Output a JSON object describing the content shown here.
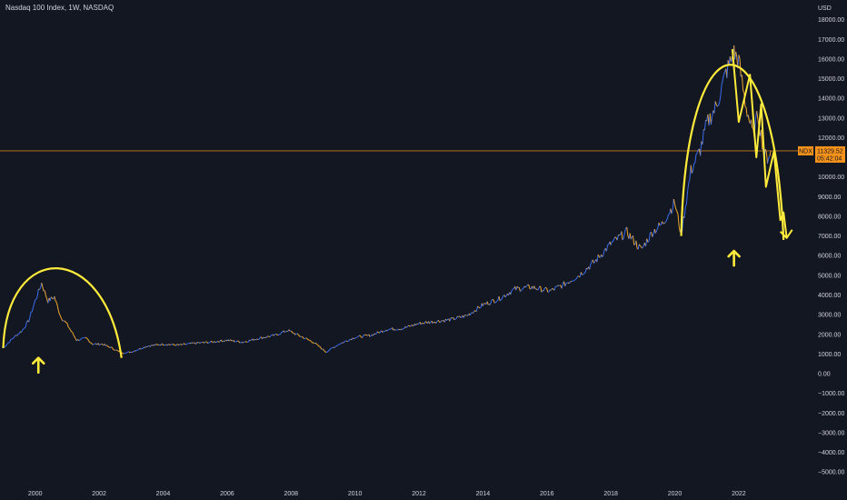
{
  "header": {
    "title": "Nasdaq 100 Index, 1W, NASDAQ"
  },
  "colors": {
    "background": "#131722",
    "up": "#3a6df0",
    "down": "#f0a830",
    "annotation": "#ffeb3b",
    "price_line": "#f7931a",
    "grid": "#1c2030"
  },
  "chart_data": {
    "type": "line",
    "title": "Nasdaq 100 Index, 1W, NASDAQ",
    "xlabel": "",
    "ylabel": "USD",
    "y_unit": "USD",
    "xlim": [
      1998.9,
      2023.85
    ],
    "ylim": [
      -5500,
      19000
    ],
    "grid": false,
    "x_ticks": [
      "2000",
      "2002",
      "2004",
      "2006",
      "2008",
      "2010",
      "2012",
      "2014",
      "2016",
      "2018",
      "2020",
      "2022"
    ],
    "y_ticks": [
      "18000.00",
      "17000.00",
      "16000.00",
      "15000.00",
      "14000.00",
      "13000.00",
      "12000.00",
      "11000.00",
      "10000.00",
      "9000.00",
      "8000.00",
      "7000.00",
      "6000.00",
      "5000.00",
      "4000.00",
      "3000.00",
      "2000.00",
      "1000.00",
      "0.00",
      "−1000.00",
      "−2000.00",
      "−3000.00",
      "−4000.00",
      "−5000.00"
    ],
    "series": [
      {
        "values_x": [
          1999.0,
          1999.3,
          1999.6,
          1999.8,
          2000.0,
          2000.2,
          2000.4,
          2000.6,
          2000.8,
          2001.0,
          2001.3,
          2001.6,
          2001.8,
          2002.1,
          2002.4,
          2002.7,
          2003.0,
          2003.5,
          2004.0,
          2004.5,
          2005.0,
          2005.5,
          2006.0,
          2006.5,
          2007.0,
          2007.5,
          2007.9,
          2008.3,
          2008.7,
          2009.1,
          2009.5,
          2010.0,
          2010.5,
          2011.0,
          2011.5,
          2012.0,
          2012.5,
          2013.0,
          2013.5,
          2014.0,
          2014.5,
          2015.0,
          2015.5,
          2016.1,
          2016.5,
          2017.0,
          2017.5,
          2018.0,
          2018.5,
          2018.95,
          2019.3,
          2019.6,
          2020.0,
          2020.2,
          2020.5,
          2020.8,
          2021.0,
          2021.3,
          2021.6,
          2021.85,
          2022.0,
          2022.2,
          2022.45,
          2022.6,
          2022.8,
          2022.9,
          2023.0
        ],
        "values_y": [
          1300,
          1800,
          2200,
          2700,
          3700,
          4600,
          3700,
          3900,
          2900,
          2500,
          1700,
          1800,
          1500,
          1500,
          1300,
          1050,
          1100,
          1400,
          1500,
          1450,
          1550,
          1600,
          1700,
          1600,
          1800,
          1950,
          2200,
          1900,
          1600,
          1100,
          1500,
          1850,
          1950,
          2250,
          2300,
          2550,
          2650,
          2750,
          2950,
          3500,
          3800,
          4300,
          4400,
          4200,
          4500,
          5000,
          5700,
          6600,
          7200,
          6300,
          7200,
          7600,
          8700,
          7100,
          10300,
          11400,
          12700,
          13600,
          15300,
          16300,
          15900,
          13800,
          12100,
          13200,
          11100,
          11000,
          11329
        ]
      }
    ],
    "price_label": {
      "symbol": "NDX",
      "value": "11329.52",
      "countdown": "05:42:04",
      "y": 11329.52
    },
    "annotations": {
      "arcs": [
        {
          "x0": 1999.0,
          "y0": 1300,
          "x_peak": 2000.1,
          "y_peak": 4850,
          "x1": 2002.7,
          "y1": 800
        },
        {
          "x0": 2020.2,
          "y0": 7000,
          "x_peak": 2021.9,
          "y_peak": 16700,
          "x1": 2023.4,
          "y1": 6800
        }
      ],
      "zigzag": [
        [
          2021.8,
          16500
        ],
        [
          2022.0,
          12800
        ],
        [
          2022.35,
          15200
        ],
        [
          2022.55,
          11000
        ],
        [
          2022.7,
          13700
        ],
        [
          2022.85,
          9500
        ],
        [
          2023.1,
          11300
        ],
        [
          2023.3,
          7800
        ],
        [
          2023.4,
          8200
        ],
        [
          2023.5,
          6900
        ]
      ],
      "up_arrows": [
        {
          "x": 2000.1,
          "y": 60
        },
        {
          "x": 2021.85,
          "y": 5500
        }
      ]
    }
  }
}
